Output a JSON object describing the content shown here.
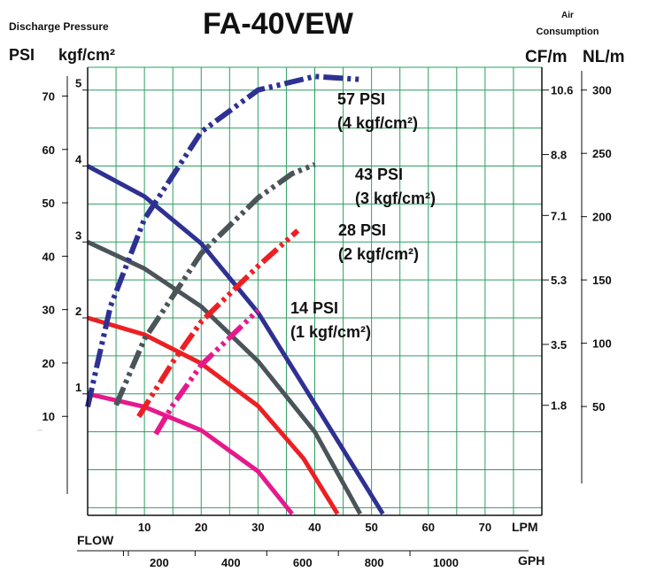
{
  "chart_data": {
    "type": "line",
    "title": "FA-40VEW",
    "left_axis_caption": "Discharge Pressure",
    "left_psi_unit": "PSI",
    "left_kgf_unit": "kgf/cm²",
    "right_axis_caption_line1": "Air",
    "right_axis_caption_line2": "Consumption",
    "right_cfm_unit": "CF/m",
    "right_nlm_unit": "NL/m",
    "flow_label": "FLOW",
    "lpm_unit": "LPM",
    "gph_unit": "GPH",
    "x_lpm_ticks": [
      10,
      20,
      30,
      40,
      50,
      60,
      70
    ],
    "x_gph_ticks": [
      200,
      400,
      600,
      800,
      1000
    ],
    "y_psi_ticks": [
      10,
      20,
      30,
      40,
      50,
      60,
      70
    ],
    "y_kgf_ticks": [
      1,
      2,
      3,
      4,
      5
    ],
    "y_cfm_ticks": [
      "1.8",
      "3.5",
      "5.3",
      "7.1",
      "8.8",
      "10.6"
    ],
    "y_nlm_ticks": [
      50,
      100,
      150,
      200,
      250,
      300
    ],
    "xlim_lpm": [
      0,
      80
    ],
    "ylim_kgf": [
      -0.6,
      5.3
    ],
    "grid": true,
    "colors": {
      "p4": "#2e3192",
      "p3": "#4a5459",
      "p2": "#ec2024",
      "p1": "#e6198c",
      "grid": "#2e9e62"
    },
    "discharge_curves": [
      {
        "name": "4",
        "color_key": "p4",
        "points": [
          [
            0,
            4.0
          ],
          [
            10,
            3.6
          ],
          [
            20,
            2.98
          ],
          [
            30,
            2.07
          ],
          [
            40,
            0.87
          ],
          [
            52,
            -0.58
          ]
        ]
      },
      {
        "name": "3",
        "color_key": "p3",
        "points": [
          [
            0,
            3.0
          ],
          [
            10,
            2.65
          ],
          [
            20,
            2.15
          ],
          [
            30,
            1.43
          ],
          [
            40,
            0.5
          ],
          [
            48,
            -0.58
          ]
        ]
      },
      {
        "name": "2",
        "color_key": "p2",
        "points": [
          [
            0,
            2.0
          ],
          [
            10,
            1.78
          ],
          [
            20,
            1.4
          ],
          [
            30,
            0.84
          ],
          [
            38,
            0.15
          ],
          [
            44,
            -0.58
          ]
        ]
      },
      {
        "name": "1",
        "color_key": "p1",
        "points": [
          [
            0,
            1.0
          ],
          [
            10,
            0.83
          ],
          [
            20,
            0.52
          ],
          [
            30,
            -0.02
          ],
          [
            36,
            -0.58
          ]
        ]
      }
    ],
    "air_curves": [
      {
        "label_line1": "57 PSI",
        "label_line2": "(4 kgf/cm²)",
        "color_key": "p4",
        "points": [
          [
            0,
            0.83
          ],
          [
            4,
            2.15
          ],
          [
            10,
            3.3
          ],
          [
            20,
            4.45
          ],
          [
            30,
            5.0
          ],
          [
            40,
            5.18
          ],
          [
            48,
            5.14
          ]
        ]
      },
      {
        "label_line1": "43 PSI",
        "label_line2": "(3 kgf/cm²)",
        "color_key": "p3",
        "points": [
          [
            5,
            0.85
          ],
          [
            10,
            1.72
          ],
          [
            20,
            2.85
          ],
          [
            30,
            3.58
          ],
          [
            36,
            3.9
          ],
          [
            40,
            4.02
          ]
        ]
      },
      {
        "label_line1": "28 PSI",
        "label_line2": "(2 kgf/cm²)",
        "color_key": "p2",
        "points": [
          [
            9,
            0.7
          ],
          [
            15,
            1.42
          ],
          [
            20,
            1.95
          ],
          [
            30,
            2.68
          ],
          [
            37,
            3.15
          ]
        ]
      },
      {
        "label_line1": "14 PSI",
        "label_line2": "(1 kgf/cm²)",
        "color_key": "p1",
        "points": [
          [
            12,
            0.47
          ],
          [
            15,
            0.85
          ],
          [
            20,
            1.38
          ],
          [
            30,
            2.1
          ]
        ]
      }
    ]
  }
}
